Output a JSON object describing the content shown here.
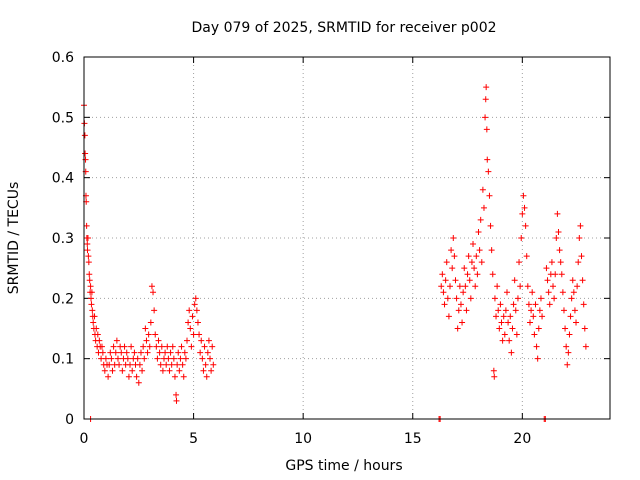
{
  "chart_data": {
    "type": "scatter",
    "title": "Day 079 of 2025, SRMTID for receiver p002",
    "xlabel": "GPS time / hours",
    "ylabel": "SRMTID / TECUs",
    "xlim": [
      0,
      24
    ],
    "ylim": [
      0,
      0.6
    ],
    "xticks": [
      0,
      5,
      10,
      15,
      20
    ],
    "xtick_labels": [
      "0",
      "5",
      "10",
      "15",
      "20"
    ],
    "yticks": [
      0,
      0.1,
      0.2,
      0.3,
      0.4,
      0.5,
      0.6
    ],
    "ytick_labels": [
      "0",
      "0.1",
      "0.2",
      "0.3",
      "0.4",
      "0.5",
      "0.6"
    ],
    "grid": true,
    "marker": "+",
    "color": "#ff0000",
    "series": [
      {
        "name": "SRMTID",
        "points": [
          [
            0.0,
            0.52
          ],
          [
            0.02,
            0.49
          ],
          [
            0.04,
            0.47
          ],
          [
            0.05,
            0.44
          ],
          [
            0.07,
            0.43
          ],
          [
            0.08,
            0.41
          ],
          [
            0.09,
            0.37
          ],
          [
            0.1,
            0.36
          ],
          [
            0.12,
            0.32
          ],
          [
            0.13,
            0.3
          ],
          [
            0.15,
            0.29
          ],
          [
            0.16,
            0.28
          ],
          [
            0.18,
            0.3
          ],
          [
            0.2,
            0.27
          ],
          [
            0.22,
            0.26
          ],
          [
            0.24,
            0.24
          ],
          [
            0.26,
            0.23
          ],
          [
            0.28,
            0.21
          ],
          [
            0.3,
            0.22
          ],
          [
            0.3,
            0.0
          ],
          [
            0.32,
            0.2
          ],
          [
            0.34,
            0.19
          ],
          [
            0.36,
            0.21
          ],
          [
            0.38,
            0.18
          ],
          [
            0.4,
            0.17
          ],
          [
            0.42,
            0.16
          ],
          [
            0.45,
            0.15
          ],
          [
            0.48,
            0.17
          ],
          [
            0.5,
            0.14
          ],
          [
            0.53,
            0.13
          ],
          [
            0.56,
            0.15
          ],
          [
            0.6,
            0.12
          ],
          [
            0.63,
            0.14
          ],
          [
            0.66,
            0.11
          ],
          [
            0.7,
            0.13
          ],
          [
            0.74,
            0.12
          ],
          [
            0.78,
            0.1
          ],
          [
            0.82,
            0.12
          ],
          [
            0.86,
            0.11
          ],
          [
            0.9,
            0.09
          ],
          [
            0.95,
            0.08
          ],
          [
            1.0,
            0.1
          ],
          [
            1.05,
            0.09
          ],
          [
            1.1,
            0.07
          ],
          [
            1.15,
            0.09
          ],
          [
            1.2,
            0.11
          ],
          [
            1.25,
            0.1
          ],
          [
            1.3,
            0.08
          ],
          [
            1.35,
            0.12
          ],
          [
            1.4,
            0.09
          ],
          [
            1.45,
            0.11
          ],
          [
            1.5,
            0.13
          ],
          [
            1.55,
            0.1
          ],
          [
            1.6,
            0.09
          ],
          [
            1.65,
            0.12
          ],
          [
            1.7,
            0.11
          ],
          [
            1.75,
            0.08
          ],
          [
            1.8,
            0.1
          ],
          [
            1.85,
            0.12
          ],
          [
            1.9,
            0.09
          ],
          [
            1.95,
            0.11
          ],
          [
            2.0,
            0.1
          ],
          [
            2.05,
            0.07
          ],
          [
            2.1,
            0.09
          ],
          [
            2.15,
            0.12
          ],
          [
            2.2,
            0.08
          ],
          [
            2.25,
            0.1
          ],
          [
            2.3,
            0.11
          ],
          [
            2.35,
            0.09
          ],
          [
            2.4,
            0.07
          ],
          [
            2.45,
            0.1
          ],
          [
            2.5,
            0.06
          ],
          [
            2.55,
            0.09
          ],
          [
            2.6,
            0.11
          ],
          [
            2.65,
            0.08
          ],
          [
            2.7,
            0.12
          ],
          [
            2.75,
            0.1
          ],
          [
            2.8,
            0.15
          ],
          [
            2.85,
            0.13
          ],
          [
            2.9,
            0.11
          ],
          [
            2.95,
            0.14
          ],
          [
            3.0,
            0.12
          ],
          [
            3.05,
            0.16
          ],
          [
            3.1,
            0.22
          ],
          [
            3.15,
            0.21
          ],
          [
            3.2,
            0.18
          ],
          [
            3.25,
            0.14
          ],
          [
            3.3,
            0.12
          ],
          [
            3.35,
            0.1
          ],
          [
            3.4,
            0.13
          ],
          [
            3.45,
            0.11
          ],
          [
            3.5,
            0.09
          ],
          [
            3.55,
            0.12
          ],
          [
            3.6,
            0.08
          ],
          [
            3.65,
            0.1
          ],
          [
            3.7,
            0.11
          ],
          [
            3.75,
            0.09
          ],
          [
            3.8,
            0.12
          ],
          [
            3.85,
            0.1
          ],
          [
            3.9,
            0.08
          ],
          [
            3.95,
            0.11
          ],
          [
            4.0,
            0.09
          ],
          [
            4.05,
            0.12
          ],
          [
            4.1,
            0.1
          ],
          [
            4.15,
            0.07
          ],
          [
            4.2,
            0.04
          ],
          [
            4.22,
            0.03
          ],
          [
            4.25,
            0.09
          ],
          [
            4.3,
            0.11
          ],
          [
            4.35,
            0.08
          ],
          [
            4.4,
            0.1
          ],
          [
            4.45,
            0.12
          ],
          [
            4.5,
            0.09
          ],
          [
            4.55,
            0.07
          ],
          [
            4.6,
            0.11
          ],
          [
            4.65,
            0.1
          ],
          [
            4.7,
            0.13
          ],
          [
            4.75,
            0.16
          ],
          [
            4.8,
            0.18
          ],
          [
            4.85,
            0.15
          ],
          [
            4.9,
            0.12
          ],
          [
            4.95,
            0.17
          ],
          [
            5.0,
            0.14
          ],
          [
            5.05,
            0.19
          ],
          [
            5.1,
            0.2
          ],
          [
            5.15,
            0.18
          ],
          [
            5.2,
            0.16
          ],
          [
            5.25,
            0.14
          ],
          [
            5.3,
            0.11
          ],
          [
            5.35,
            0.13
          ],
          [
            5.4,
            0.1
          ],
          [
            5.45,
            0.08
          ],
          [
            5.5,
            0.12
          ],
          [
            5.55,
            0.09
          ],
          [
            5.6,
            0.07
          ],
          [
            5.65,
            0.11
          ],
          [
            5.7,
            0.13
          ],
          [
            5.75,
            0.1
          ],
          [
            5.8,
            0.08
          ],
          [
            5.85,
            0.12
          ],
          [
            5.9,
            0.09
          ],
          [
            16.2,
            0.0
          ],
          [
            16.25,
            0.0
          ],
          [
            16.3,
            0.22
          ],
          [
            16.35,
            0.24
          ],
          [
            16.4,
            0.21
          ],
          [
            16.45,
            0.19
          ],
          [
            16.5,
            0.23
          ],
          [
            16.55,
            0.26
          ],
          [
            16.6,
            0.2
          ],
          [
            16.65,
            0.17
          ],
          [
            16.7,
            0.22
          ],
          [
            16.75,
            0.28
          ],
          [
            16.8,
            0.25
          ],
          [
            16.85,
            0.3
          ],
          [
            16.9,
            0.27
          ],
          [
            16.95,
            0.23
          ],
          [
            17.0,
            0.2
          ],
          [
            17.05,
            0.15
          ],
          [
            17.1,
            0.18
          ],
          [
            17.15,
            0.22
          ],
          [
            17.2,
            0.19
          ],
          [
            17.25,
            0.16
          ],
          [
            17.3,
            0.21
          ],
          [
            17.35,
            0.25
          ],
          [
            17.4,
            0.22
          ],
          [
            17.45,
            0.18
          ],
          [
            17.5,
            0.24
          ],
          [
            17.55,
            0.27
          ],
          [
            17.6,
            0.23
          ],
          [
            17.65,
            0.2
          ],
          [
            17.7,
            0.26
          ],
          [
            17.75,
            0.29
          ],
          [
            17.8,
            0.25
          ],
          [
            17.85,
            0.22
          ],
          [
            17.9,
            0.27
          ],
          [
            17.95,
            0.24
          ],
          [
            18.0,
            0.31
          ],
          [
            18.05,
            0.28
          ],
          [
            18.1,
            0.33
          ],
          [
            18.15,
            0.26
          ],
          [
            18.2,
            0.38
          ],
          [
            18.25,
            0.35
          ],
          [
            18.3,
            0.5
          ],
          [
            18.33,
            0.53
          ],
          [
            18.35,
            0.55
          ],
          [
            18.38,
            0.48
          ],
          [
            18.4,
            0.43
          ],
          [
            18.45,
            0.41
          ],
          [
            18.5,
            0.37
          ],
          [
            18.55,
            0.32
          ],
          [
            18.6,
            0.28
          ],
          [
            18.65,
            0.24
          ],
          [
            18.7,
            0.08
          ],
          [
            18.72,
            0.07
          ],
          [
            18.75,
            0.2
          ],
          [
            18.8,
            0.17
          ],
          [
            18.85,
            0.22
          ],
          [
            18.9,
            0.18
          ],
          [
            18.95,
            0.15
          ],
          [
            19.0,
            0.19
          ],
          [
            19.05,
            0.16
          ],
          [
            19.1,
            0.13
          ],
          [
            19.15,
            0.17
          ],
          [
            19.2,
            0.14
          ],
          [
            19.25,
            0.18
          ],
          [
            19.3,
            0.21
          ],
          [
            19.35,
            0.16
          ],
          [
            19.4,
            0.13
          ],
          [
            19.45,
            0.17
          ],
          [
            19.5,
            0.11
          ],
          [
            19.55,
            0.15
          ],
          [
            19.6,
            0.19
          ],
          [
            19.65,
            0.23
          ],
          [
            19.7,
            0.18
          ],
          [
            19.75,
            0.14
          ],
          [
            19.8,
            0.2
          ],
          [
            19.85,
            0.26
          ],
          [
            19.9,
            0.22
          ],
          [
            19.95,
            0.3
          ],
          [
            20.0,
            0.34
          ],
          [
            20.05,
            0.37
          ],
          [
            20.1,
            0.35
          ],
          [
            20.15,
            0.32
          ],
          [
            20.2,
            0.27
          ],
          [
            20.25,
            0.22
          ],
          [
            20.3,
            0.19
          ],
          [
            20.35,
            0.16
          ],
          [
            20.4,
            0.18
          ],
          [
            20.45,
            0.21
          ],
          [
            20.5,
            0.17
          ],
          [
            20.55,
            0.14
          ],
          [
            20.6,
            0.19
          ],
          [
            20.65,
            0.12
          ],
          [
            20.7,
            0.1
          ],
          [
            20.75,
            0.15
          ],
          [
            20.8,
            0.18
          ],
          [
            20.85,
            0.2
          ],
          [
            20.9,
            0.17
          ],
          [
            21.0,
            0.0
          ],
          [
            21.05,
            0.0
          ],
          [
            21.1,
            0.25
          ],
          [
            21.15,
            0.23
          ],
          [
            21.2,
            0.21
          ],
          [
            21.25,
            0.19
          ],
          [
            21.3,
            0.24
          ],
          [
            21.35,
            0.26
          ],
          [
            21.4,
            0.22
          ],
          [
            21.45,
            0.2
          ],
          [
            21.5,
            0.24
          ],
          [
            21.55,
            0.3
          ],
          [
            21.6,
            0.34
          ],
          [
            21.65,
            0.31
          ],
          [
            21.7,
            0.28
          ],
          [
            21.75,
            0.26
          ],
          [
            21.8,
            0.24
          ],
          [
            21.85,
            0.21
          ],
          [
            21.9,
            0.18
          ],
          [
            21.95,
            0.15
          ],
          [
            22.0,
            0.12
          ],
          [
            22.05,
            0.09
          ],
          [
            22.1,
            0.11
          ],
          [
            22.15,
            0.14
          ],
          [
            22.2,
            0.17
          ],
          [
            22.25,
            0.2
          ],
          [
            22.3,
            0.23
          ],
          [
            22.35,
            0.21
          ],
          [
            22.4,
            0.18
          ],
          [
            22.45,
            0.16
          ],
          [
            22.5,
            0.22
          ],
          [
            22.55,
            0.26
          ],
          [
            22.6,
            0.3
          ],
          [
            22.65,
            0.32
          ],
          [
            22.7,
            0.27
          ],
          [
            22.75,
            0.23
          ],
          [
            22.8,
            0.19
          ],
          [
            22.85,
            0.15
          ],
          [
            22.9,
            0.12
          ]
        ]
      }
    ]
  }
}
